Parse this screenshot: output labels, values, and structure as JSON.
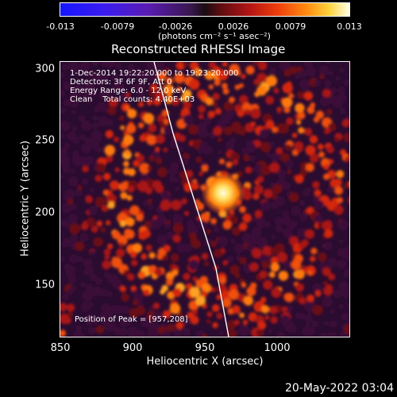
{
  "colorbar": {
    "ticks": [
      "-0.013",
      "-0.0079",
      "-0.0026",
      "0.0026",
      "0.0079",
      "0.013"
    ],
    "units": "(photons cm⁻² s⁻¹ asec⁻²)"
  },
  "title": "Reconstructed RHESSI Image",
  "info": {
    "time_range": "1-Dec-2014 19:22:20.000 to 19:23:20.000",
    "detectors": "Detectors: 3F 6F 9F, Att 0",
    "energy": "Energy Range: 6.0 - 12.0 keV",
    "clean": "Clean    Total counts: 4.40E+03",
    "peak": "Position of Peak = [957,208]"
  },
  "axes": {
    "xlabel": "Heliocentric X (arcsec)",
    "ylabel": "Heliocentric Y (arcsec)",
    "xticks": [
      "850",
      "900",
      "950",
      "1000"
    ],
    "yticks": [
      "300",
      "250",
      "200",
      "150"
    ]
  },
  "footer_date": "20-May-2022 03:04",
  "colors": {
    "background": "#000000",
    "limb_line": "#ffffff",
    "peak_core": "#ffffd0"
  }
}
